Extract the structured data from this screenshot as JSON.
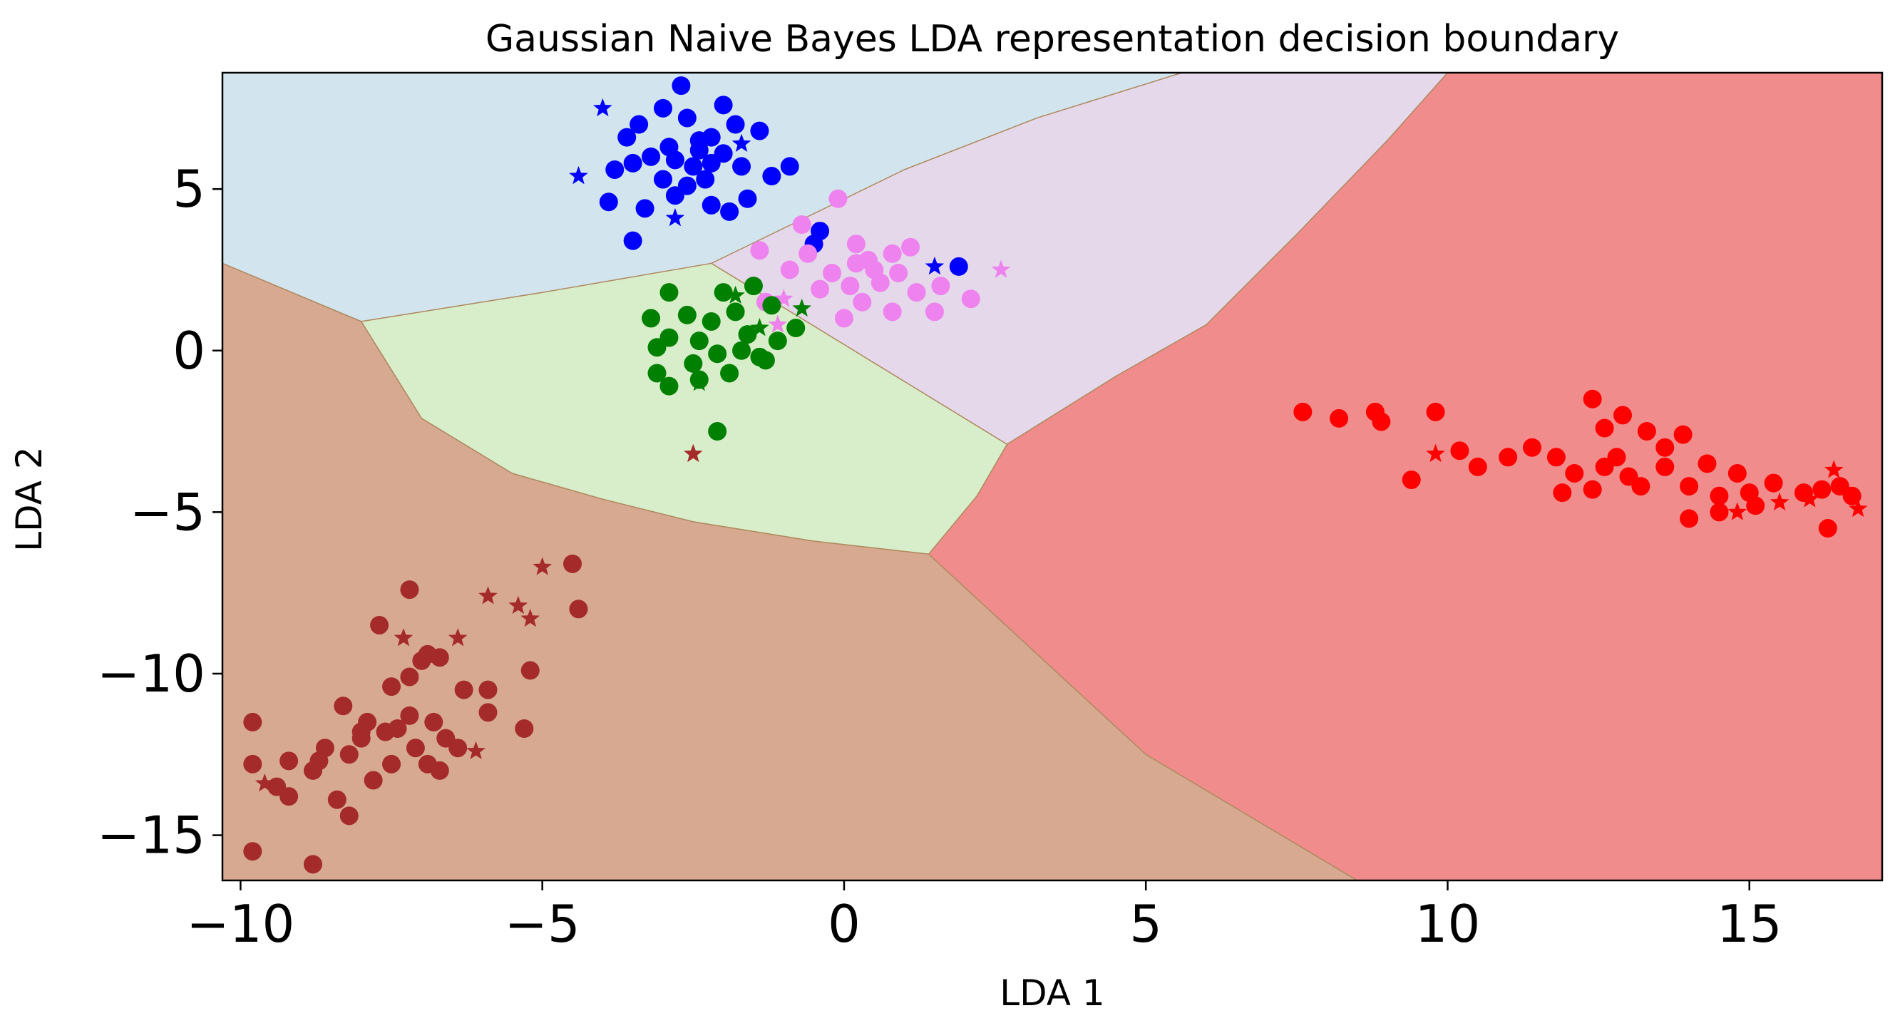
{
  "chart_data": {
    "type": "scatter",
    "title": "Gaussian Naive Bayes LDA representation decision boundary",
    "xlabel": "LDA 1",
    "ylabel": "LDA 2",
    "xlim": [
      -10.3,
      17.2
    ],
    "ylim": [
      -16.4,
      8.6
    ],
    "x_ticks": [
      -10,
      -5,
      0,
      5,
      10,
      15
    ],
    "y_ticks": [
      -15,
      -10,
      -5,
      0,
      5
    ],
    "x_tick_labels": [
      "−10",
      "−5",
      "0",
      "5",
      "10",
      "15"
    ],
    "y_tick_labels": [
      "−15",
      "−10",
      "−5",
      "0",
      "5"
    ],
    "grid": false,
    "legend": "none",
    "regions": [
      {
        "class": "blue",
        "color": "#d2e5ee",
        "polygon": [
          [
            -10.3,
            8.6
          ],
          [
            5.6,
            8.6
          ],
          [
            3.2,
            7.2
          ],
          [
            1.0,
            5.6
          ],
          [
            -2.2,
            2.6
          ],
          [
            -5.0,
            1.8
          ],
          [
            -8.0,
            0.9
          ],
          [
            -10.3,
            2.7
          ]
        ]
      },
      {
        "class": "violet",
        "color": "#e5d8ea",
        "polygon": [
          [
            5.6,
            8.6
          ],
          [
            10.0,
            8.6
          ],
          [
            9.0,
            6.5
          ],
          [
            7.5,
            3.6
          ],
          [
            6.0,
            0.8
          ],
          [
            4.5,
            -0.8
          ],
          [
            2.7,
            -2.9
          ],
          [
            -2.2,
            2.7
          ],
          [
            1.0,
            5.6
          ],
          [
            3.2,
            7.2
          ]
        ]
      },
      {
        "class": "red",
        "color": "#f08c8c",
        "polygon": [
          [
            10.0,
            8.6
          ],
          [
            17.2,
            8.6
          ],
          [
            17.2,
            -16.4
          ],
          [
            8.5,
            -16.4
          ],
          [
            5.0,
            -12.5
          ],
          [
            1.4,
            -6.3
          ],
          [
            2.2,
            -4.5
          ],
          [
            2.7,
            -2.9
          ],
          [
            4.5,
            -0.8
          ],
          [
            6.0,
            0.8
          ],
          [
            7.5,
            3.6
          ],
          [
            9.0,
            6.5
          ]
        ]
      },
      {
        "class": "green",
        "color": "#d8eecb",
        "polygon": [
          [
            -8.0,
            0.9
          ],
          [
            -5.0,
            1.8
          ],
          [
            -2.2,
            2.7
          ],
          [
            2.7,
            -2.9
          ],
          [
            2.2,
            -4.5
          ],
          [
            1.4,
            -6.3
          ],
          [
            -0.5,
            -5.9
          ],
          [
            -2.5,
            -5.3
          ],
          [
            -4.0,
            -4.6
          ],
          [
            -5.5,
            -3.8
          ],
          [
            -7.0,
            -2.1
          ]
        ]
      },
      {
        "class": "brown",
        "color": "#d6a990",
        "polygon": [
          [
            -10.3,
            2.7
          ],
          [
            -8.0,
            0.9
          ],
          [
            -7.0,
            -2.1
          ],
          [
            -5.5,
            -3.8
          ],
          [
            -4.0,
            -4.6
          ],
          [
            -2.5,
            -5.3
          ],
          [
            -0.5,
            -5.9
          ],
          [
            1.4,
            -6.3
          ],
          [
            5.0,
            -12.5
          ],
          [
            8.5,
            -16.4
          ],
          [
            -10.3,
            -16.4
          ]
        ]
      }
    ],
    "series": [
      {
        "color": "#0000ff",
        "points": [
          [
            -3.0,
            7.5
          ],
          [
            -3.4,
            7.0
          ],
          [
            -2.6,
            7.2
          ],
          [
            -2.0,
            7.6
          ],
          [
            -1.8,
            7.0
          ],
          [
            -1.4,
            6.8
          ],
          [
            -3.6,
            6.6
          ],
          [
            -2.4,
            6.5
          ],
          [
            -3.8,
            5.6
          ],
          [
            -1.2,
            5.4
          ],
          [
            -0.9,
            5.7
          ],
          [
            -1.6,
            4.7
          ],
          [
            -2.2,
            4.5
          ],
          [
            -3.3,
            4.4
          ],
          [
            -2.8,
            4.8
          ],
          [
            -3.9,
            4.6
          ],
          [
            -1.9,
            4.3
          ],
          [
            -3.2,
            6.0
          ],
          [
            -2.8,
            5.9
          ],
          [
            -2.5,
            5.7
          ],
          [
            -2.2,
            5.8
          ],
          [
            -2.0,
            6.1
          ],
          [
            -3.0,
            5.3
          ],
          [
            -2.6,
            5.1
          ],
          [
            -2.3,
            5.3
          ],
          [
            -3.5,
            5.8
          ],
          [
            -1.7,
            5.7
          ],
          [
            -2.4,
            6.2
          ],
          [
            -2.9,
            6.3
          ],
          [
            -2.2,
            6.6
          ],
          [
            -2.7,
            8.2
          ],
          [
            -3.5,
            3.4
          ],
          [
            -0.4,
            3.7
          ],
          [
            1.9,
            2.6
          ],
          [
            -0.5,
            3.3
          ]
        ]
      },
      {
        "color": "#0000ff",
        "marker": "star",
        "points": [
          [
            -4.4,
            5.4
          ],
          [
            -4.0,
            7.5
          ],
          [
            -2.8,
            4.1
          ],
          [
            1.5,
            2.6
          ],
          [
            -1.7,
            6.4
          ]
        ]
      },
      {
        "color": "#ee82ee",
        "points": [
          [
            0.2,
            3.3
          ],
          [
            -0.1,
            4.7
          ],
          [
            -0.7,
            3.9
          ],
          [
            -1.4,
            3.1
          ],
          [
            -0.6,
            3.0
          ],
          [
            0.4,
            2.8
          ],
          [
            0.8,
            3.0
          ],
          [
            1.1,
            3.2
          ],
          [
            -0.2,
            2.4
          ],
          [
            0.1,
            2.0
          ],
          [
            0.6,
            2.1
          ],
          [
            1.2,
            1.8
          ],
          [
            1.6,
            2.0
          ],
          [
            2.1,
            1.6
          ],
          [
            0.8,
            1.2
          ],
          [
            0.3,
            1.5
          ],
          [
            -0.4,
            1.9
          ],
          [
            -0.9,
            2.5
          ],
          [
            -1.3,
            1.5
          ],
          [
            0.0,
            1.0
          ],
          [
            1.5,
            1.2
          ],
          [
            0.5,
            2.5
          ],
          [
            0.9,
            2.4
          ],
          [
            0.2,
            2.7
          ]
        ]
      },
      {
        "color": "#ee82ee",
        "marker": "star",
        "points": [
          [
            2.6,
            2.5
          ],
          [
            -1.1,
            0.8
          ],
          [
            -1.0,
            1.6
          ]
        ]
      },
      {
        "color": "#008000",
        "points": [
          [
            -2.9,
            1.8
          ],
          [
            -2.0,
            1.8
          ],
          [
            -1.5,
            2.0
          ],
          [
            -3.2,
            1.0
          ],
          [
            -2.6,
            1.1
          ],
          [
            -1.8,
            1.2
          ],
          [
            -1.2,
            1.4
          ],
          [
            -2.9,
            0.4
          ],
          [
            -2.4,
            0.3
          ],
          [
            -1.6,
            0.5
          ],
          [
            -1.1,
            0.3
          ],
          [
            -0.8,
            0.7
          ],
          [
            -3.1,
            0.1
          ],
          [
            -2.1,
            -0.1
          ],
          [
            -1.4,
            -0.2
          ],
          [
            -3.1,
            -0.7
          ],
          [
            -2.5,
            -0.4
          ],
          [
            -1.9,
            -0.7
          ],
          [
            -1.3,
            -0.3
          ],
          [
            -2.4,
            -0.9
          ],
          [
            -2.9,
            -1.1
          ],
          [
            -2.1,
            -2.5
          ],
          [
            -2.2,
            0.9
          ],
          [
            -1.7,
            0.0
          ]
        ]
      },
      {
        "color": "#008000",
        "marker": "star",
        "points": [
          [
            -2.4,
            -1.0
          ],
          [
            -1.8,
            1.7
          ],
          [
            -1.4,
            0.7
          ],
          [
            -0.7,
            1.3
          ]
        ]
      },
      {
        "color": "#a52a2a",
        "points": [
          [
            -4.5,
            -6.6
          ],
          [
            -4.4,
            -8.0
          ],
          [
            -7.2,
            -7.4
          ],
          [
            -7.7,
            -8.5
          ],
          [
            -6.9,
            -9.4
          ],
          [
            -6.3,
            -10.5
          ],
          [
            -5.9,
            -10.5
          ],
          [
            -5.9,
            -11.2
          ],
          [
            -5.2,
            -9.9
          ],
          [
            -5.3,
            -11.7
          ],
          [
            -9.8,
            -11.5
          ],
          [
            -9.8,
            -12.8
          ],
          [
            -9.4,
            -13.5
          ],
          [
            -9.2,
            -12.7
          ],
          [
            -9.2,
            -13.8
          ],
          [
            -8.7,
            -12.7
          ],
          [
            -8.3,
            -11.0
          ],
          [
            -8.0,
            -11.8
          ],
          [
            -7.5,
            -10.4
          ],
          [
            -7.2,
            -11.3
          ],
          [
            -7.1,
            -12.3
          ],
          [
            -6.8,
            -11.5
          ],
          [
            -6.6,
            -12.0
          ],
          [
            -6.4,
            -12.3
          ],
          [
            -6.9,
            -12.8
          ],
          [
            -6.7,
            -13.0
          ],
          [
            -7.5,
            -12.8
          ],
          [
            -7.8,
            -13.3
          ],
          [
            -8.2,
            -12.5
          ],
          [
            -8.6,
            -12.3
          ],
          [
            -8.8,
            -13.0
          ],
          [
            -8.4,
            -13.9
          ],
          [
            -8.2,
            -14.4
          ],
          [
            -7.2,
            -10.1
          ],
          [
            -7.0,
            -9.6
          ],
          [
            -6.7,
            -9.5
          ],
          [
            -9.8,
            -15.5
          ],
          [
            -8.8,
            -15.9
          ],
          [
            -7.9,
            -11.5
          ],
          [
            -7.6,
            -11.8
          ],
          [
            -8.0,
            -12.0
          ],
          [
            -7.4,
            -11.7
          ]
        ]
      },
      {
        "color": "#a52a2a",
        "marker": "star",
        "points": [
          [
            -5.0,
            -6.7
          ],
          [
            -5.4,
            -7.9
          ],
          [
            -5.9,
            -7.6
          ],
          [
            -6.4,
            -8.9
          ],
          [
            -7.3,
            -8.9
          ],
          [
            -5.2,
            -8.3
          ],
          [
            -6.1,
            -12.4
          ],
          [
            -9.6,
            -13.4
          ],
          [
            -2.5,
            -3.2
          ]
        ]
      },
      {
        "color": "#ff0000",
        "points": [
          [
            7.6,
            -1.9
          ],
          [
            8.2,
            -2.1
          ],
          [
            8.8,
            -1.9
          ],
          [
            8.9,
            -2.2
          ],
          [
            9.8,
            -1.9
          ],
          [
            9.4,
            -4.0
          ],
          [
            10.2,
            -3.1
          ],
          [
            10.5,
            -3.6
          ],
          [
            11.0,
            -3.3
          ],
          [
            11.4,
            -3.0
          ],
          [
            11.8,
            -3.3
          ],
          [
            12.1,
            -3.8
          ],
          [
            12.4,
            -1.5
          ],
          [
            12.6,
            -2.4
          ],
          [
            12.9,
            -2.0
          ],
          [
            12.8,
            -3.3
          ],
          [
            13.2,
            -4.2
          ],
          [
            13.3,
            -2.5
          ],
          [
            13.6,
            -3.0
          ],
          [
            13.9,
            -2.6
          ],
          [
            13.6,
            -3.6
          ],
          [
            14.0,
            -4.2
          ],
          [
            14.3,
            -3.5
          ],
          [
            14.5,
            -4.5
          ],
          [
            14.8,
            -3.8
          ],
          [
            14.0,
            -5.2
          ],
          [
            14.5,
            -5.0
          ],
          [
            15.0,
            -4.4
          ],
          [
            15.1,
            -4.8
          ],
          [
            15.4,
            -4.1
          ],
          [
            15.9,
            -4.4
          ],
          [
            16.2,
            -4.3
          ],
          [
            16.5,
            -4.2
          ],
          [
            16.7,
            -4.5
          ],
          [
            16.3,
            -5.5
          ],
          [
            12.4,
            -4.3
          ],
          [
            11.9,
            -4.4
          ],
          [
            12.6,
            -3.6
          ],
          [
            13.0,
            -3.9
          ]
        ]
      },
      {
        "color": "#ff0000",
        "marker": "star",
        "points": [
          [
            9.8,
            -3.2
          ],
          [
            14.8,
            -5.0
          ],
          [
            15.5,
            -4.7
          ],
          [
            16.0,
            -4.6
          ],
          [
            16.4,
            -3.7
          ],
          [
            16.8,
            -4.9
          ]
        ]
      }
    ]
  }
}
